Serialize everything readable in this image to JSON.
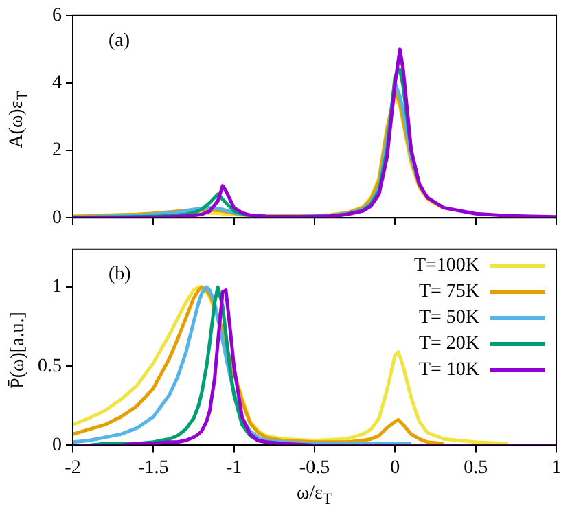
{
  "chart_data": [
    {
      "type": "line",
      "ylabel": "A(ω)ε$_{T}$",
      "annotations": [
        "(a)"
      ],
      "xlim": [
        -2,
        1
      ],
      "xticks": [
        -2,
        -1.5,
        -1,
        -0.5,
        0,
        0.5,
        1
      ],
      "ylim": [
        0,
        6
      ],
      "yticks": [
        0,
        2,
        4,
        6
      ],
      "tick_labels": "y",
      "grid": false,
      "legend": false,
      "x": [
        -2,
        -1.8,
        -1.6,
        -1.5,
        -1.4,
        -1.3,
        -1.25,
        -1.2,
        -1.15,
        -1.1,
        -1.07,
        -1.05,
        -1.0,
        -0.95,
        -0.9,
        -0.8,
        -0.6,
        -0.4,
        -0.3,
        -0.2,
        -0.15,
        -0.1,
        -0.05,
        0,
        0.03,
        0.05,
        0.1,
        0.15,
        0.2,
        0.3,
        0.5,
        0.7,
        1
      ],
      "series": [
        {
          "color": "#f0e442",
          "values": [
            0.05,
            0.08,
            0.1,
            0.12,
            0.14,
            0.15,
            0.15,
            0.15,
            0.14,
            0.13,
            0.12,
            0.11,
            0.09,
            0.08,
            0.06,
            0.05,
            0.05,
            0.09,
            0.15,
            0.32,
            0.6,
            1.2,
            2.7,
            3.6,
            3.3,
            2.8,
            1.6,
            0.9,
            0.55,
            0.28,
            null,
            null,
            null
          ]
        },
        {
          "color": "#e69f00",
          "values": [
            0.04,
            0.07,
            0.1,
            0.13,
            0.17,
            0.22,
            0.24,
            0.25,
            0.24,
            0.22,
            0.2,
            0.18,
            0.13,
            0.1,
            0.07,
            0.05,
            0.05,
            0.08,
            0.14,
            0.3,
            0.55,
            1.1,
            2.6,
            3.8,
            3.4,
            2.9,
            1.7,
            0.95,
            0.6,
            0.3,
            null,
            null,
            null
          ]
        },
        {
          "color": "#56b4e9",
          "values": [
            0.02,
            0.04,
            0.07,
            0.1,
            0.14,
            0.2,
            0.25,
            0.28,
            0.3,
            0.28,
            0.25,
            0.22,
            0.15,
            0.1,
            0.07,
            0.04,
            0.04,
            0.07,
            0.12,
            0.25,
            0.45,
            0.9,
            2.3,
            4.0,
            3.6,
            3.2,
            1.8,
            1.0,
            0.6,
            null,
            null,
            null,
            null
          ]
        },
        {
          "color": "#009e73",
          "values": [
            0.01,
            0.02,
            0.03,
            0.04,
            0.06,
            0.1,
            0.15,
            0.25,
            0.45,
            0.7,
            0.55,
            0.45,
            0.2,
            0.12,
            0.07,
            0.04,
            0.03,
            0.05,
            0.1,
            0.22,
            0.4,
            0.8,
            2.0,
            4.2,
            4.4,
            3.9,
            2.0,
            1.0,
            null,
            null,
            null,
            null,
            null
          ]
        },
        {
          "color": "#9400d3",
          "values": [
            0.01,
            0.01,
            0.02,
            0.02,
            0.03,
            0.05,
            0.07,
            0.1,
            0.2,
            0.5,
            0.95,
            0.8,
            0.3,
            0.15,
            0.08,
            0.04,
            0.03,
            0.05,
            0.1,
            0.2,
            0.35,
            0.7,
            1.8,
            4.0,
            5.0,
            4.4,
            2.0,
            1.0,
            0.6,
            0.3,
            0.12,
            0.06,
            0.03
          ]
        }
      ]
    },
    {
      "type": "line",
      "xlabel": "ω/ε$_{T}$",
      "ylabel": "P̄(ω)[a.u.]",
      "annotations": [
        "(b)"
      ],
      "xlim": [
        -2,
        1
      ],
      "xticks": [
        -2,
        -1.5,
        -1,
        -0.5,
        0,
        0.5,
        1
      ],
      "ylim": [
        0,
        1.24
      ],
      "yticks": [
        0,
        0.5,
        1
      ],
      "grid": false,
      "legend": "top right",
      "x": [
        -2,
        -1.9,
        -1.8,
        -1.7,
        -1.6,
        -1.5,
        -1.4,
        -1.35,
        -1.3,
        -1.25,
        -1.22,
        -1.2,
        -1.17,
        -1.15,
        -1.12,
        -1.1,
        -1.07,
        -1.05,
        -1.02,
        -1.0,
        -0.95,
        -0.9,
        -0.85,
        -0.8,
        -0.7,
        -0.5,
        -0.3,
        -0.2,
        -0.15,
        -0.1,
        -0.05,
        0,
        0.02,
        0.05,
        0.1,
        0.15,
        0.2,
        0.3,
        0.5,
        0.7,
        1
      ],
      "series": [
        {
          "name": "T=100K",
          "color": "#f0e442",
          "values": [
            0.13,
            0.17,
            0.22,
            0.29,
            0.38,
            0.52,
            0.7,
            0.8,
            0.9,
            0.98,
            1.0,
            1.0,
            0.97,
            0.93,
            0.86,
            0.8,
            0.7,
            0.63,
            0.53,
            0.47,
            0.3,
            0.15,
            0.09,
            0.06,
            0.04,
            0.03,
            0.04,
            0.07,
            0.1,
            0.17,
            0.35,
            0.57,
            0.59,
            0.5,
            0.3,
            0.15,
            0.08,
            0.04,
            0.02,
            0.01,
            null
          ]
        },
        {
          "name": "T= 75K",
          "color": "#e69f00",
          "values": [
            0.07,
            0.1,
            0.13,
            0.18,
            0.25,
            0.36,
            0.55,
            0.67,
            0.8,
            0.93,
            0.98,
            1.0,
            0.98,
            0.95,
            0.88,
            0.82,
            0.72,
            0.64,
            0.53,
            0.46,
            0.28,
            0.14,
            0.08,
            0.05,
            0.03,
            0.02,
            0.02,
            0.03,
            0.04,
            0.06,
            0.11,
            0.15,
            0.16,
            0.13,
            0.07,
            0.04,
            0.02,
            0.01,
            null,
            null,
            null
          ]
        },
        {
          "name": "T= 50K",
          "color": "#56b4e9",
          "values": [
            0.02,
            0.03,
            0.05,
            0.07,
            0.11,
            0.18,
            0.32,
            0.43,
            0.58,
            0.78,
            0.9,
            0.96,
            1.0,
            0.98,
            0.9,
            0.8,
            0.66,
            0.56,
            0.42,
            0.33,
            0.17,
            0.09,
            0.05,
            0.03,
            0.02,
            0.01,
            0.01,
            0.01,
            0.01,
            0.01,
            0.01,
            0.01,
            0.01,
            0.01,
            0.01,
            null,
            null,
            null,
            null,
            null,
            null
          ]
        },
        {
          "name": "T= 20K",
          "color": "#009e73",
          "values": [
            0,
            0,
            0.01,
            0.01,
            0.01,
            0.02,
            0.04,
            0.06,
            0.1,
            0.17,
            0.25,
            0.33,
            0.5,
            0.65,
            0.9,
            1.0,
            0.88,
            0.7,
            0.45,
            0.32,
            0.13,
            0.06,
            0.03,
            0.02,
            0.01,
            null,
            null,
            null,
            null,
            null,
            null,
            null,
            null,
            null,
            null,
            null,
            null,
            null,
            null,
            null,
            null
          ]
        },
        {
          "name": "T= 10K",
          "color": "#9400d3",
          "values": [
            0,
            0,
            0,
            0,
            0.01,
            0.01,
            0.02,
            0.02,
            0.03,
            0.05,
            0.07,
            0.09,
            0.15,
            0.22,
            0.42,
            0.65,
            0.97,
            0.98,
            0.7,
            0.5,
            0.18,
            0.07,
            0.03,
            0.02,
            0.01,
            0,
            0,
            0,
            0,
            0,
            0,
            0,
            0,
            0,
            0,
            0,
            0,
            0,
            0,
            0,
            0
          ]
        }
      ]
    }
  ]
}
